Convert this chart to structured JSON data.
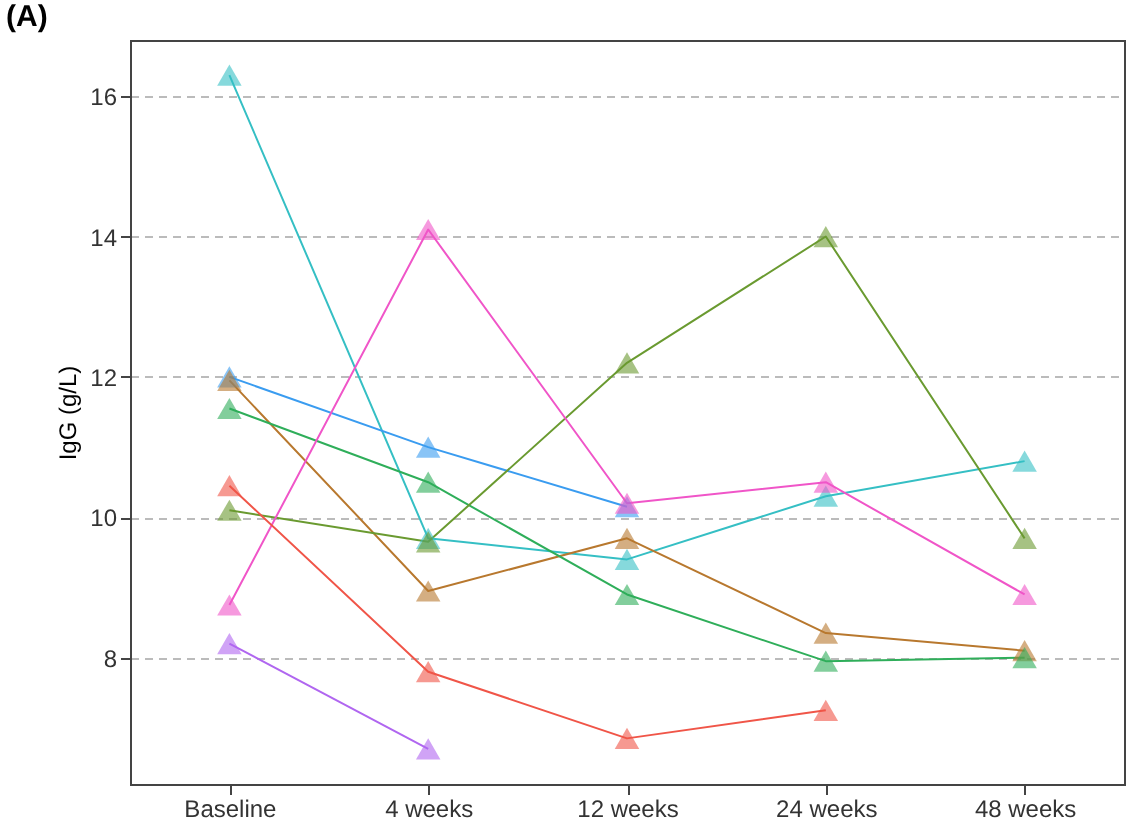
{
  "chart_data": {
    "type": "line",
    "title": "(A)",
    "ylabel": "IgG (g/L)",
    "categories": [
      "Baseline",
      "4 weeks",
      "12 weeks",
      "24 weeks",
      "48 weeks"
    ],
    "series": [
      {
        "color": "#35bfc4",
        "values": [
          16.3,
          9.7,
          9.4,
          10.3,
          10.8
        ]
      },
      {
        "color": "#3a9cf0",
        "values": [
          12.0,
          11.0,
          10.15,
          null,
          null
        ]
      },
      {
        "color": "#b8782e",
        "values": [
          11.95,
          8.95,
          9.7,
          8.35,
          8.1
        ]
      },
      {
        "color": "#2fae5a",
        "values": [
          11.55,
          10.5,
          8.9,
          7.95,
          8.0
        ]
      },
      {
        "color": "#6a9a30",
        "values": [
          10.1,
          9.65,
          12.2,
          14.0,
          9.7
        ]
      },
      {
        "color": "#f055c8",
        "values": [
          8.75,
          14.1,
          10.2,
          10.5,
          8.9
        ]
      },
      {
        "color": "#f05548",
        "values": [
          10.45,
          7.8,
          6.85,
          7.25,
          null
        ]
      },
      {
        "color": "#b066f0",
        "values": [
          8.2,
          6.7,
          null,
          null,
          null
        ]
      }
    ],
    "ylim": [
      6.2,
      16.8
    ],
    "yticks": [
      8,
      10,
      12,
      14,
      16
    ],
    "grid": "y",
    "marker": "triangle",
    "line_style": "solid"
  }
}
